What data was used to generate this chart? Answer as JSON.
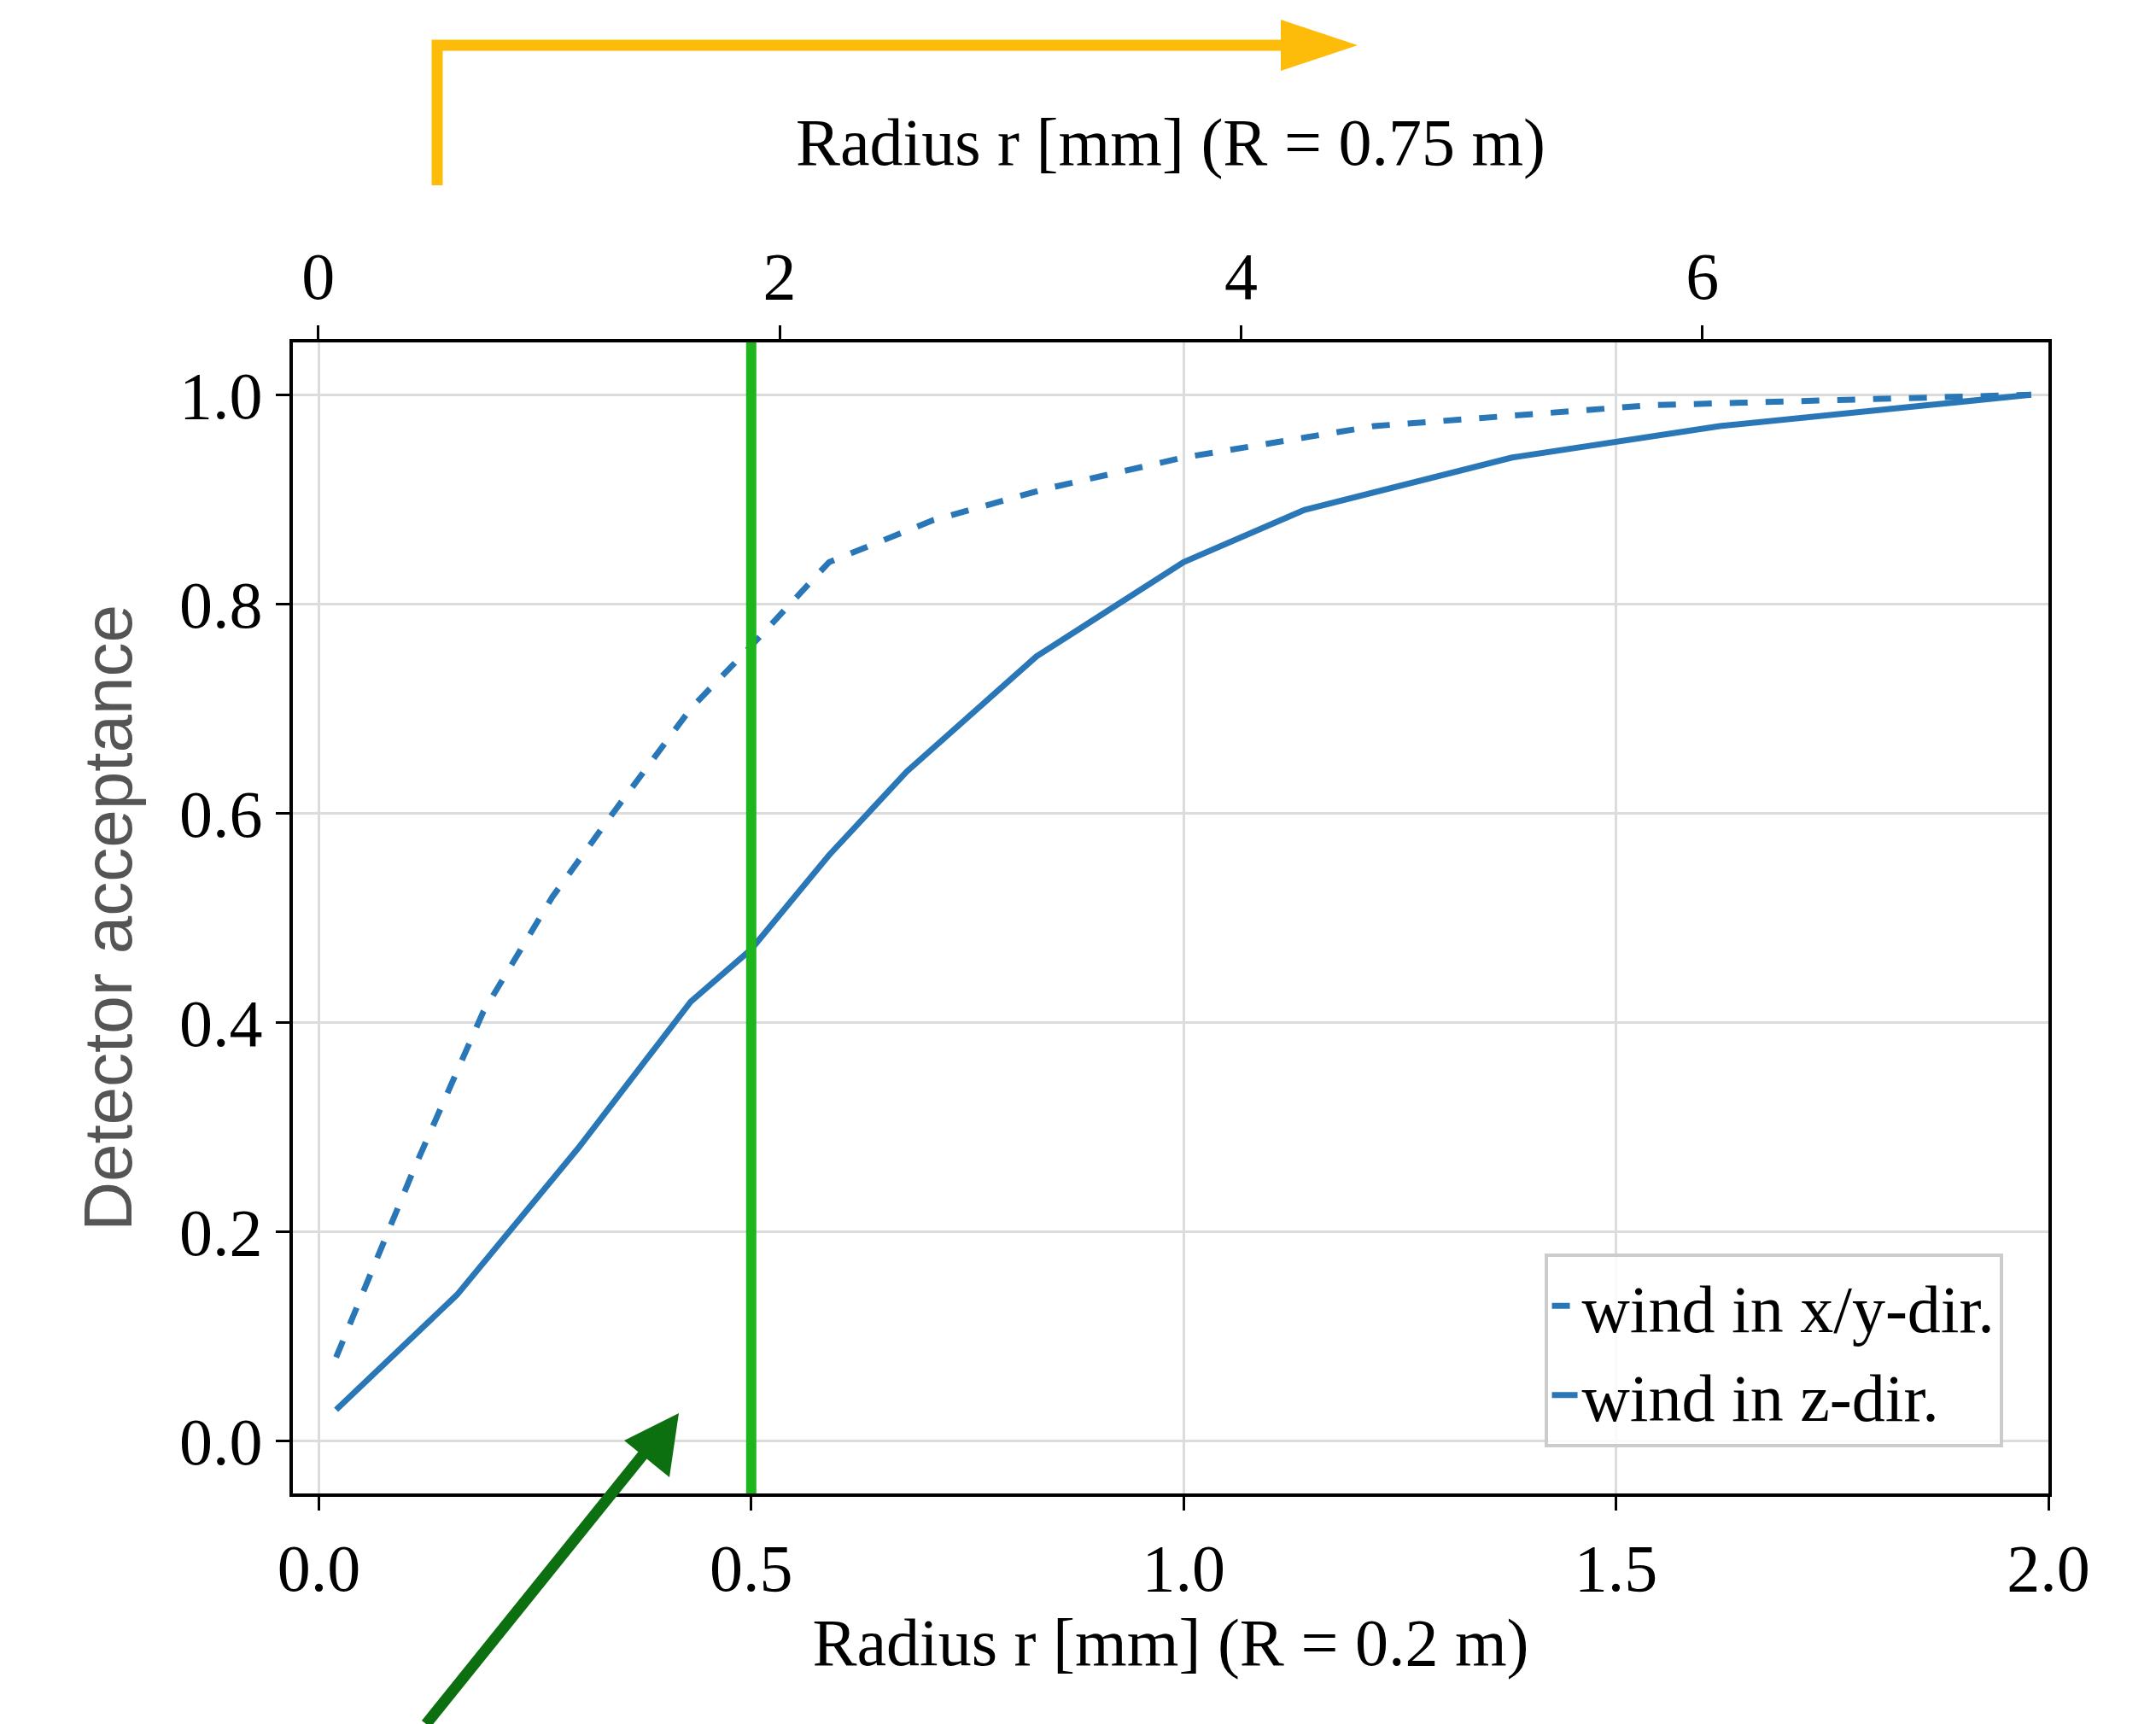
{
  "chart_data": {
    "type": "line",
    "xlabel": "Radius r [mm] (R = 0.2 m)",
    "x2label": "Radius r [mm] (R = 0.75 m)",
    "ylabel": "Detector acceptance",
    "xlim": [
      -0.03,
      2.0
    ],
    "xticks": [
      {
        "value": 0,
        "label": "0.0"
      },
      {
        "value": 0.5,
        "label": "0.5"
      },
      {
        "value": 1,
        "label": "1.0"
      },
      {
        "value": 1.5,
        "label": "1.5"
      },
      {
        "value": 2,
        "label": "2.0"
      }
    ],
    "x2lim": [
      -0.11,
      7.5
    ],
    "x2ticks": [
      0,
      2,
      4,
      6
    ],
    "ylim": [
      -0.05,
      1.05
    ],
    "yticks": [
      {
        "value": 0,
        "label": "0.0"
      },
      {
        "value": 0.2,
        "label": "0.2"
      },
      {
        "value": 0.4,
        "label": "0.4"
      },
      {
        "value": 0.6,
        "label": "0.6"
      },
      {
        "value": 0.8,
        "label": "0.8"
      },
      {
        "value": 1,
        "label": "1.0"
      }
    ],
    "grid": true,
    "legend": "bottom right",
    "marker": "none",
    "series": [
      {
        "name": "wind in x/y-dir.",
        "color": "#2a77b8",
        "line_style": "dashed",
        "x": [
          0.02,
          0.11,
          0.19,
          0.27,
          0.34,
          0.43,
          0.5,
          0.59,
          0.71,
          0.84,
          1.0,
          1.22,
          1.54,
          1.98
        ],
        "values": [
          0.08,
          0.26,
          0.41,
          0.52,
          0.6,
          0.7,
          0.76,
          0.84,
          0.88,
          0.91,
          0.94,
          0.97,
          0.99,
          1.0
        ]
      },
      {
        "name": "wind in z-dir.",
        "color": "#2a77b8",
        "line_style": "solid",
        "x": [
          0.02,
          0.16,
          0.3,
          0.43,
          0.5,
          0.59,
          0.68,
          0.83,
          1.0,
          1.14,
          1.38,
          1.62,
          1.86,
          1.98
        ],
        "values": [
          0.03,
          0.14,
          0.28,
          0.42,
          0.47,
          0.56,
          0.64,
          0.75,
          0.84,
          0.89,
          0.94,
          0.97,
          0.99,
          1.0
        ]
      }
    ],
    "ref_lines": [
      {
        "axis": "x",
        "value": 0.5,
        "color": "#1eb51e",
        "line_style": "solid"
      }
    ]
  }
}
